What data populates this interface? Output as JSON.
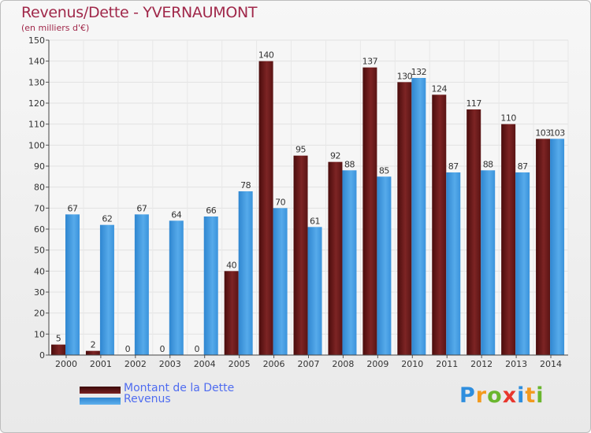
{
  "title": "Revenus/Dette - YVERNAUMONT",
  "subtitle": "(en milliers d'€)",
  "legend": {
    "debt": "Montant de la Dette",
    "revenue": "Revenus"
  },
  "logo": {
    "letters": [
      "P",
      "r",
      "o",
      "x",
      "i",
      "t",
      "i"
    ],
    "colors": [
      "#2e8ede",
      "#f39a1e",
      "#6ab62e",
      "#e8362d",
      "#2e8ede",
      "#f39a1e",
      "#6ab62e"
    ]
  },
  "colors": {
    "debt": "#6b1a1a",
    "revenue": "#3f99e0",
    "title": "#a0284a",
    "legend_text": "#4f6cf0"
  },
  "chart_data": {
    "type": "bar",
    "title": "Revenus/Dette - YVERNAUMONT",
    "subtitle": "(en milliers d'€)",
    "categories": [
      "2000",
      "2001",
      "2002",
      "2003",
      "2004",
      "2005",
      "2006",
      "2007",
      "2008",
      "2009",
      "2010",
      "2011",
      "2012",
      "2013",
      "2014"
    ],
    "series": [
      {
        "name": "Montant de la Dette",
        "values": [
          5,
          2,
          0,
          0,
          0,
          40,
          140,
          95,
          92,
          137,
          130,
          124,
          117,
          110,
          103
        ]
      },
      {
        "name": "Revenus",
        "values": [
          67,
          62,
          67,
          64,
          66,
          78,
          70,
          61,
          88,
          85,
          132,
          87,
          88,
          87,
          103
        ]
      }
    ],
    "ylim": [
      0,
      150
    ],
    "yticks": [
      0,
      10,
      20,
      30,
      40,
      50,
      60,
      70,
      80,
      90,
      100,
      110,
      120,
      130,
      140,
      150
    ],
    "grid": true,
    "legend_position": "bottom-left"
  }
}
